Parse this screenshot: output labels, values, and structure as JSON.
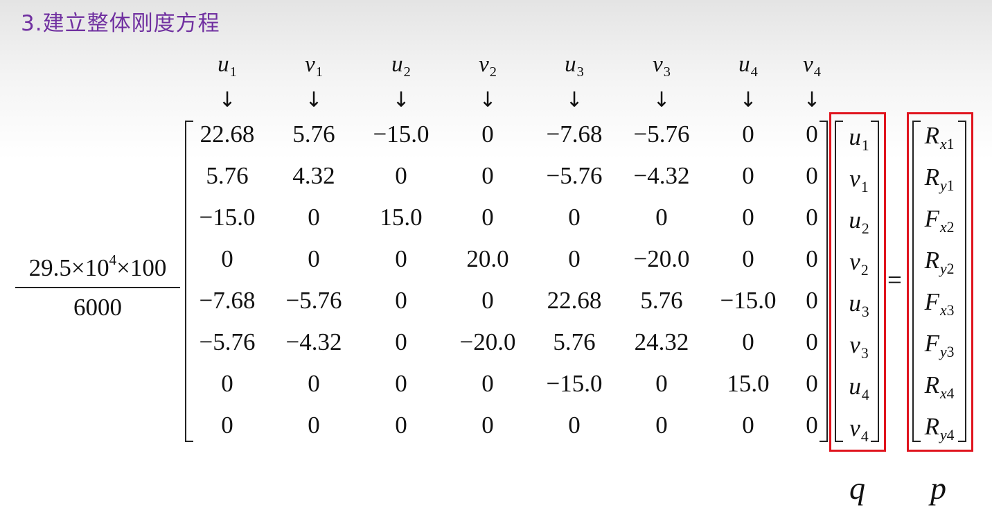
{
  "title": "3.建立整体刚度方程",
  "column_headers": [
    {
      "base": "u",
      "sub": "1"
    },
    {
      "base": "v",
      "sub": "1"
    },
    {
      "base": "u",
      "sub": "2"
    },
    {
      "base": "v",
      "sub": "2"
    },
    {
      "base": "u",
      "sub": "3"
    },
    {
      "base": "v",
      "sub": "3"
    },
    {
      "base": "u",
      "sub": "4"
    },
    {
      "base": "v",
      "sub": "4"
    }
  ],
  "arrow_symbol": "↓",
  "coefficient": {
    "numerator_mantissa": "29.5×10",
    "numerator_exponent": "4",
    "numerator_tail": "×100",
    "denominator": "6000"
  },
  "matrix": [
    [
      "22.68",
      "5.76",
      "−15.0",
      "0",
      "−7.68",
      "−5.76",
      "0",
      "0"
    ],
    [
      "5.76",
      "4.32",
      "0",
      "0",
      "−5.76",
      "−4.32",
      "0",
      "0"
    ],
    [
      "−15.0",
      "0",
      "15.0",
      "0",
      "0",
      "0",
      "0",
      "0"
    ],
    [
      "0",
      "0",
      "0",
      "20.0",
      "0",
      "−20.0",
      "0",
      "0"
    ],
    [
      "−7.68",
      "−5.76",
      "0",
      "0",
      "22.68",
      "5.76",
      "−15.0",
      "0"
    ],
    [
      "−5.76",
      "−4.32",
      "0",
      "−20.0",
      "5.76",
      "24.32",
      "0",
      "0"
    ],
    [
      "0",
      "0",
      "0",
      "0",
      "−15.0",
      "0",
      "15.0",
      "0"
    ],
    [
      "0",
      "0",
      "0",
      "0",
      "0",
      "0",
      "0",
      "0"
    ]
  ],
  "q_vector": [
    {
      "base": "u",
      "sub": "1"
    },
    {
      "base": "v",
      "sub": "1"
    },
    {
      "base": "u",
      "sub": "2"
    },
    {
      "base": "v",
      "sub": "2"
    },
    {
      "base": "u",
      "sub": "3"
    },
    {
      "base": "v",
      "sub": "3"
    },
    {
      "base": "u",
      "sub": "4"
    },
    {
      "base": "v",
      "sub": "4"
    }
  ],
  "equals": "=",
  "p_vector": [
    {
      "base": "R",
      "sub_var": "x",
      "sub_num": "1"
    },
    {
      "base": "R",
      "sub_var": "y",
      "sub_num": "1"
    },
    {
      "base": "F",
      "sub_var": "x",
      "sub_num": "2"
    },
    {
      "base": "R",
      "sub_var": "y",
      "sub_num": "2"
    },
    {
      "base": "F",
      "sub_var": "x",
      "sub_num": "3"
    },
    {
      "base": "F",
      "sub_var": "y",
      "sub_num": "3"
    },
    {
      "base": "R",
      "sub_var": "x",
      "sub_num": "4"
    },
    {
      "base": "R",
      "sub_var": "y",
      "sub_num": "4"
    }
  ],
  "q_label": "q",
  "p_label": "p",
  "highlight_color": "#e0141e",
  "title_color": "#7030a0"
}
